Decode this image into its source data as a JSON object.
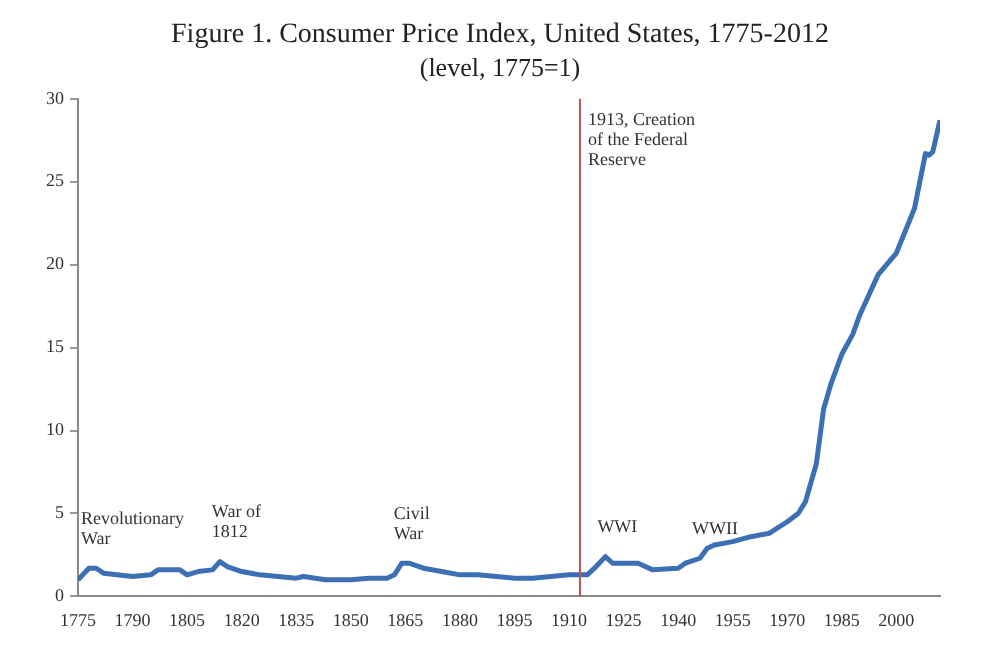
{
  "chart_data": {
    "type": "line",
    "title": "Figure 1. Consumer Price Index, United States, 1775-2012",
    "subtitle": "(level, 1775=1)",
    "x": [
      1775,
      1778,
      1780,
      1782,
      1790,
      1795,
      1797,
      1800,
      1803,
      1805,
      1808,
      1812,
      1814,
      1816,
      1820,
      1825,
      1830,
      1835,
      1837,
      1843,
      1850,
      1855,
      1860,
      1862,
      1864,
      1866,
      1870,
      1875,
      1880,
      1885,
      1890,
      1895,
      1900,
      1905,
      1910,
      1915,
      1917,
      1920,
      1922,
      1925,
      1929,
      1933,
      1940,
      1942,
      1946,
      1948,
      1950,
      1955,
      1960,
      1965,
      1970,
      1973,
      1975,
      1978,
      1980,
      1982,
      1985,
      1988,
      1990,
      1995,
      2000,
      2005,
      2008,
      2009,
      2010,
      2012
    ],
    "series": [
      {
        "color": "#3d6fb5",
        "values": [
          1.0,
          1.7,
          1.7,
          1.4,
          1.2,
          1.3,
          1.6,
          1.6,
          1.6,
          1.3,
          1.5,
          1.6,
          2.1,
          1.8,
          1.5,
          1.3,
          1.2,
          1.1,
          1.2,
          1.0,
          1.0,
          1.1,
          1.1,
          1.3,
          2.0,
          2.0,
          1.7,
          1.5,
          1.3,
          1.3,
          1.2,
          1.1,
          1.1,
          1.2,
          1.3,
          1.3,
          1.7,
          2.4,
          2.0,
          2.0,
          2.0,
          1.6,
          1.7,
          2.0,
          2.3,
          2.9,
          3.1,
          3.3,
          3.6,
          3.8,
          4.5,
          5.0,
          5.7,
          8.0,
          11.3,
          12.8,
          14.6,
          15.8,
          17.0,
          19.4,
          20.7,
          23.4,
          26.7,
          26.6,
          26.8,
          28.7
        ]
      }
    ],
    "xlim": [
      1775,
      2012
    ],
    "xticks": [
      1775,
      1790,
      1805,
      1820,
      1835,
      1850,
      1865,
      1880,
      1895,
      1910,
      1925,
      1940,
      1955,
      1970,
      1985,
      2000
    ],
    "ylim": [
      0,
      30
    ],
    "yticks": [
      0,
      5,
      10,
      15,
      20,
      25,
      30
    ],
    "grid": false,
    "legend": false,
    "marker": "none",
    "line_style": "solid",
    "ref_lines": [
      {
        "axis": "x",
        "value": 1913,
        "label": "1913, Creation of the Federal Reserve",
        "color": "#c0504d"
      }
    ],
    "annotations": [
      {
        "text": "Revolutionary War",
        "x": 1778,
        "y": 1.7
      },
      {
        "text": "War of 1812",
        "x": 1814,
        "y": 2.1
      },
      {
        "text": "Civil War",
        "x": 1864,
        "y": 2.0
      },
      {
        "text": "WWI",
        "x": 1920,
        "y": 2.4
      },
      {
        "text": "WWII",
        "x": 1946,
        "y": 2.3
      }
    ]
  }
}
